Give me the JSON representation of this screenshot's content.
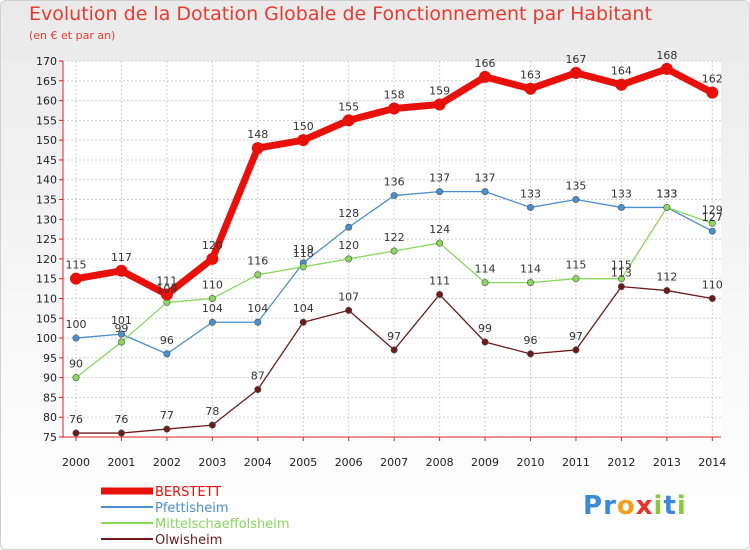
{
  "header": {
    "title": "Evolution de la Dotation Globale de Fonctionnement par Habitant",
    "subtitle": "(en € et par an)"
  },
  "logo": {
    "text": "Proxiti"
  },
  "chart_data": {
    "type": "line",
    "title": "Evolution de la Dotation Globale de Fonctionnement par Habitant",
    "subtitle": "(en € et par an)",
    "xlabel": "",
    "ylabel": "",
    "x": [
      "2000",
      "2001",
      "2002",
      "2003",
      "2004",
      "2005",
      "2006",
      "2007",
      "2008",
      "2009",
      "2010",
      "2011",
      "2012",
      "2013",
      "2014"
    ],
    "ylim": [
      75,
      170
    ],
    "yticks": [
      75,
      80,
      85,
      90,
      95,
      100,
      105,
      110,
      115,
      120,
      125,
      130,
      135,
      140,
      145,
      150,
      155,
      160,
      165,
      170
    ],
    "grid": true,
    "legend_position": "bottom-left",
    "series": [
      {
        "name": "BERSTETT",
        "color": "#e8100a",
        "values": [
          115,
          117,
          111,
          120,
          148,
          150,
          155,
          158,
          159,
          166,
          163,
          167,
          164,
          168,
          162
        ]
      },
      {
        "name": "Pfettisheim",
        "color": "#4a8fd0",
        "values": [
          100,
          101,
          96,
          104,
          104,
          119,
          128,
          136,
          137,
          137,
          133,
          135,
          133,
          133,
          127
        ]
      },
      {
        "name": "Mittelschaeffolsheim",
        "color": "#88d85a",
        "values": [
          90,
          99,
          109,
          110,
          116,
          118,
          120,
          122,
          124,
          114,
          114,
          115,
          115,
          133,
          129
        ]
      },
      {
        "name": "Olwisheim",
        "color": "#6e1a1a",
        "values": [
          76,
          76,
          77,
          78,
          87,
          104,
          107,
          97,
          111,
          99,
          96,
          97,
          113,
          112,
          110
        ]
      }
    ]
  }
}
